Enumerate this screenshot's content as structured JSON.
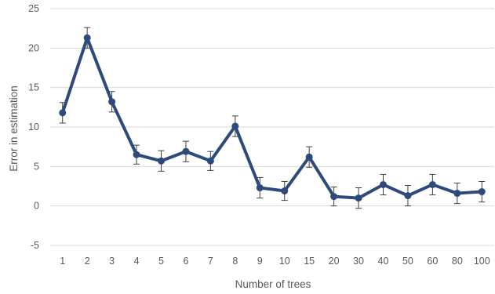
{
  "chart_data": {
    "type": "line",
    "xlabel": "Number  of trees",
    "ylabel": "Error in estimation",
    "ylim": [
      -5,
      25
    ],
    "yticks": [
      -5,
      0,
      5,
      10,
      15,
      20,
      25
    ],
    "grid": "horizontal",
    "categories": [
      "1",
      "2",
      "3",
      "4",
      "5",
      "6",
      "7",
      "8",
      "9",
      "10",
      "15",
      "20",
      "30",
      "40",
      "50",
      "60",
      "80",
      "100"
    ],
    "series": [
      {
        "values": [
          11.8,
          21.3,
          13.2,
          6.5,
          5.7,
          6.9,
          5.7,
          10.1,
          2.3,
          1.9,
          6.2,
          1.2,
          1.0,
          2.7,
          1.3,
          2.7,
          1.6,
          1.8
        ],
        "error": [
          1.3,
          1.3,
          1.3,
          1.2,
          1.3,
          1.3,
          1.2,
          1.3,
          1.3,
          1.2,
          1.3,
          1.2,
          1.3,
          1.3,
          1.3,
          1.3,
          1.3,
          1.3
        ],
        "color": "#2e4a7d"
      }
    ]
  }
}
